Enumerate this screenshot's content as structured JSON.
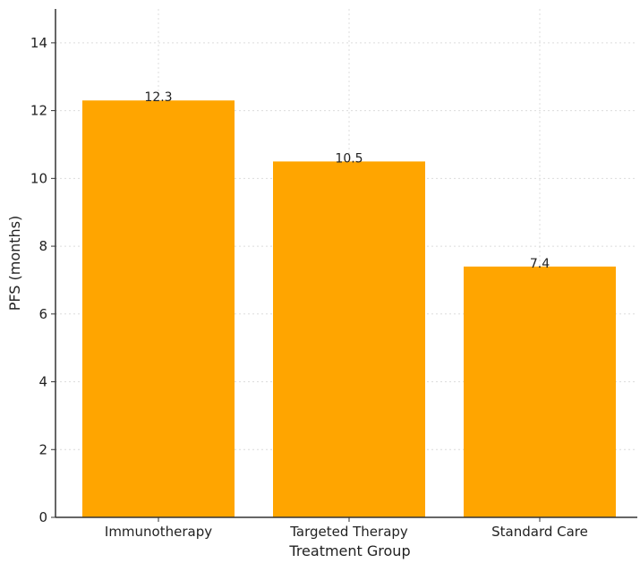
{
  "chart_data": {
    "type": "bar",
    "categories": [
      "Immunotherapy",
      "Targeted Therapy",
      "Standard Care"
    ],
    "values": [
      12.3,
      10.5,
      7.4
    ],
    "value_labels": [
      "12.3",
      "10.5",
      "7.4"
    ],
    "xlabel": "Treatment Group",
    "ylabel": "PFS (months)",
    "ylim": [
      0,
      15
    ],
    "yticks": [
      0,
      2,
      4,
      6,
      8,
      10,
      12,
      14
    ],
    "grid": true,
    "bar_color": "#FFA500"
  }
}
